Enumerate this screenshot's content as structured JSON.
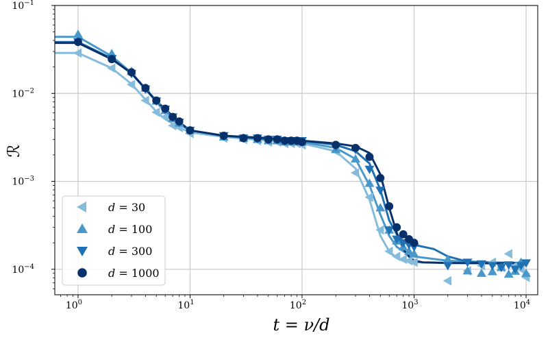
{
  "chart_data": {
    "type": "line",
    "xscale": "log",
    "yscale": "log",
    "xlim": [
      0.62,
      12700
    ],
    "ylim": [
      5.13e-05,
      0.1
    ],
    "xlabel": "t = ν/d",
    "xlabel_parts": {
      "lhs": "t = ",
      "num": "ν",
      "den": "d"
    },
    "ylabel": "ℛ",
    "grid": true,
    "legend_position": "lower-left",
    "xticks": [
      {
        "value": 1,
        "base": "10",
        "exp": "0"
      },
      {
        "value": 10,
        "base": "10",
        "exp": "1"
      },
      {
        "value": 100,
        "base": "10",
        "exp": "2"
      },
      {
        "value": 1000,
        "base": "10",
        "exp": "3"
      },
      {
        "value": 10000,
        "base": "10",
        "exp": "4"
      }
    ],
    "yticks": [
      {
        "value": 0.0001,
        "base": "10",
        "exp": "−4"
      },
      {
        "value": 0.001,
        "base": "10",
        "exp": "−3"
      },
      {
        "value": 0.01,
        "base": "10",
        "exp": "−2"
      },
      {
        "value": 0.1,
        "base": "10",
        "exp": "−1"
      }
    ],
    "series": [
      {
        "name": "d = 30",
        "label_var": "d",
        "label_val": " = 30",
        "color": "#85bcdc",
        "marker": "triangle-left",
        "x": [
          1,
          2,
          3,
          4,
          5,
          6,
          7,
          8,
          10,
          20,
          30,
          40,
          50,
          60,
          70,
          80,
          90,
          100,
          200,
          300,
          400,
          500,
          600,
          700,
          800,
          900,
          1000,
          2000,
          3000,
          4000,
          5000,
          6000,
          7000,
          8000,
          9000,
          10000
        ],
        "y": [
          0.0288,
          0.0194,
          0.0126,
          0.0083,
          0.0061,
          0.0054,
          0.0043,
          0.0041,
          0.0035,
          0.0031,
          0.003,
          0.0029,
          0.0028,
          0.0028,
          0.0027,
          0.0027,
          0.0027,
          0.0026,
          0.0022,
          0.00125,
          0.00066,
          0.00028,
          0.00016,
          0.00014,
          0.00013,
          0.000125,
          0.00012,
          7.4e-05,
          9.6e-05,
          0.00011,
          0.00012,
          0.000105,
          0.00015,
          0.00011,
          0.0001,
          8.1e-05
        ],
        "fit_x": [
          0.62,
          1,
          2,
          3,
          4,
          5,
          6,
          8,
          10,
          20,
          50,
          100,
          200,
          300,
          400,
          500,
          600,
          700,
          800,
          1000,
          2000,
          5000,
          10000
        ],
        "fit_y": [
          0.0288,
          0.0288,
          0.0194,
          0.0128,
          0.0085,
          0.0062,
          0.0051,
          0.0041,
          0.0036,
          0.0032,
          0.0029,
          0.0027,
          0.0022,
          0.0014,
          0.00062,
          0.00024,
          0.00016,
          0.000135,
          0.000125,
          0.00012,
          0.000118,
          0.000117,
          0.000117
        ]
      },
      {
        "name": "d = 100",
        "label_var": "d",
        "label_val": " = 100",
        "color": "#4a98c9",
        "marker": "triangle-up",
        "x": [
          1,
          2,
          3,
          4,
          5,
          6,
          7,
          8,
          10,
          20,
          30,
          40,
          50,
          60,
          70,
          80,
          90,
          100,
          200,
          300,
          400,
          500,
          600,
          700,
          800,
          900,
          1000,
          2000,
          3000,
          4000,
          5000,
          6000,
          7000,
          8000,
          9000,
          10000
        ],
        "y": [
          0.047,
          0.0284,
          0.0178,
          0.0115,
          0.0082,
          0.0064,
          0.0052,
          0.0046,
          0.0038,
          0.0032,
          0.0031,
          0.003,
          0.0029,
          0.0029,
          0.0028,
          0.0028,
          0.0028,
          0.0028,
          0.0023,
          0.0018,
          0.00095,
          0.0005,
          0.00028,
          0.00021,
          0.00018,
          0.00016,
          0.00015,
          0.00013,
          9.6e-05,
          9e-05,
          9.4e-05,
          0.000105,
          8.8e-05,
          9.5e-05,
          0.00012,
          9e-05
        ],
        "fit_x": [
          0.62,
          1,
          2,
          3,
          4,
          5,
          6,
          8,
          10,
          20,
          50,
          100,
          200,
          300,
          400,
          500,
          600,
          700,
          800,
          1000,
          2000,
          5000,
          10000
        ],
        "fit_y": [
          0.044,
          0.044,
          0.0265,
          0.0172,
          0.0112,
          0.008,
          0.0062,
          0.0045,
          0.0038,
          0.0033,
          0.003,
          0.0028,
          0.0024,
          0.0018,
          0.0009,
          0.00042,
          0.00024,
          0.00018,
          0.00016,
          0.00014,
          0.000125,
          0.00012,
          0.000118
        ]
      },
      {
        "name": "d = 300",
        "label_var": "d",
        "label_val": " = 300",
        "color": "#2070b4",
        "marker": "triangle-down",
        "x": [
          1,
          2,
          3,
          4,
          5,
          6,
          7,
          8,
          10,
          20,
          30,
          40,
          50,
          60,
          70,
          80,
          90,
          100,
          200,
          300,
          400,
          500,
          600,
          700,
          800,
          900,
          1000,
          2000,
          3000,
          4000,
          5000,
          6000,
          7000,
          8000,
          9000,
          10000
        ],
        "y": [
          0.0385,
          0.025,
          0.0168,
          0.0112,
          0.0082,
          0.0066,
          0.0054,
          0.0047,
          0.0038,
          0.0033,
          0.0031,
          0.0031,
          0.003,
          0.003,
          0.0029,
          0.0029,
          0.0029,
          0.0029,
          0.0025,
          0.0023,
          0.00137,
          0.00079,
          0.00028,
          0.00022,
          0.0002,
          0.00019,
          0.00018,
          0.00011,
          0.00012,
          0.000115,
          0.00011,
          0.000105,
          0.000112,
          0.0001,
          0.00011,
          0.000118
        ],
        "fit_x": [
          0.62,
          1,
          2,
          3,
          4,
          5,
          6,
          8,
          10,
          20,
          50,
          100,
          200,
          300,
          400,
          500,
          600,
          700,
          800,
          1000,
          1500,
          2000,
          3000,
          5000,
          10000
        ],
        "fit_y": [
          0.0385,
          0.0385,
          0.025,
          0.0168,
          0.0112,
          0.0082,
          0.0066,
          0.0047,
          0.0038,
          0.0033,
          0.003,
          0.0029,
          0.0026,
          0.0022,
          0.0016,
          0.0008,
          0.00036,
          0.00025,
          0.00021,
          0.00019,
          0.00017,
          0.00014,
          0.000122,
          0.000118,
          0.000117
        ]
      },
      {
        "name": "d = 1000",
        "label_var": "d",
        "label_val": " = 1000",
        "color": "#08306b",
        "marker": "circle",
        "x": [
          1,
          2,
          3,
          4,
          5,
          6,
          7,
          8,
          10,
          20,
          30,
          40,
          50,
          60,
          70,
          80,
          90,
          100,
          200,
          300,
          400,
          500,
          600,
          700,
          800,
          900,
          1000
        ],
        "y": [
          0.0385,
          0.0245,
          0.0174,
          0.0115,
          0.0083,
          0.0067,
          0.0054,
          0.0048,
          0.0038,
          0.0033,
          0.0031,
          0.0031,
          0.003,
          0.003,
          0.0029,
          0.0029,
          0.0029,
          0.0028,
          0.0026,
          0.0024,
          0.0019,
          0.00109,
          0.00052,
          0.0003,
          0.00025,
          0.00022,
          0.0002
        ],
        "fit_x": [
          0.62,
          1,
          2,
          3,
          4,
          5,
          6,
          8,
          10,
          20,
          50,
          100,
          200,
          300,
          400,
          500,
          600,
          700,
          800,
          900,
          1000,
          1200,
          2000,
          5000,
          10000
        ],
        "fit_y": [
          0.0375,
          0.0375,
          0.0245,
          0.017,
          0.0113,
          0.0082,
          0.0066,
          0.0047,
          0.0038,
          0.0033,
          0.0031,
          0.0029,
          0.0027,
          0.0025,
          0.0021,
          0.0012,
          0.0005,
          0.00026,
          0.00017,
          0.00014,
          0.000125,
          0.00012,
          0.000118,
          0.000117,
          0.000117
        ]
      }
    ]
  }
}
